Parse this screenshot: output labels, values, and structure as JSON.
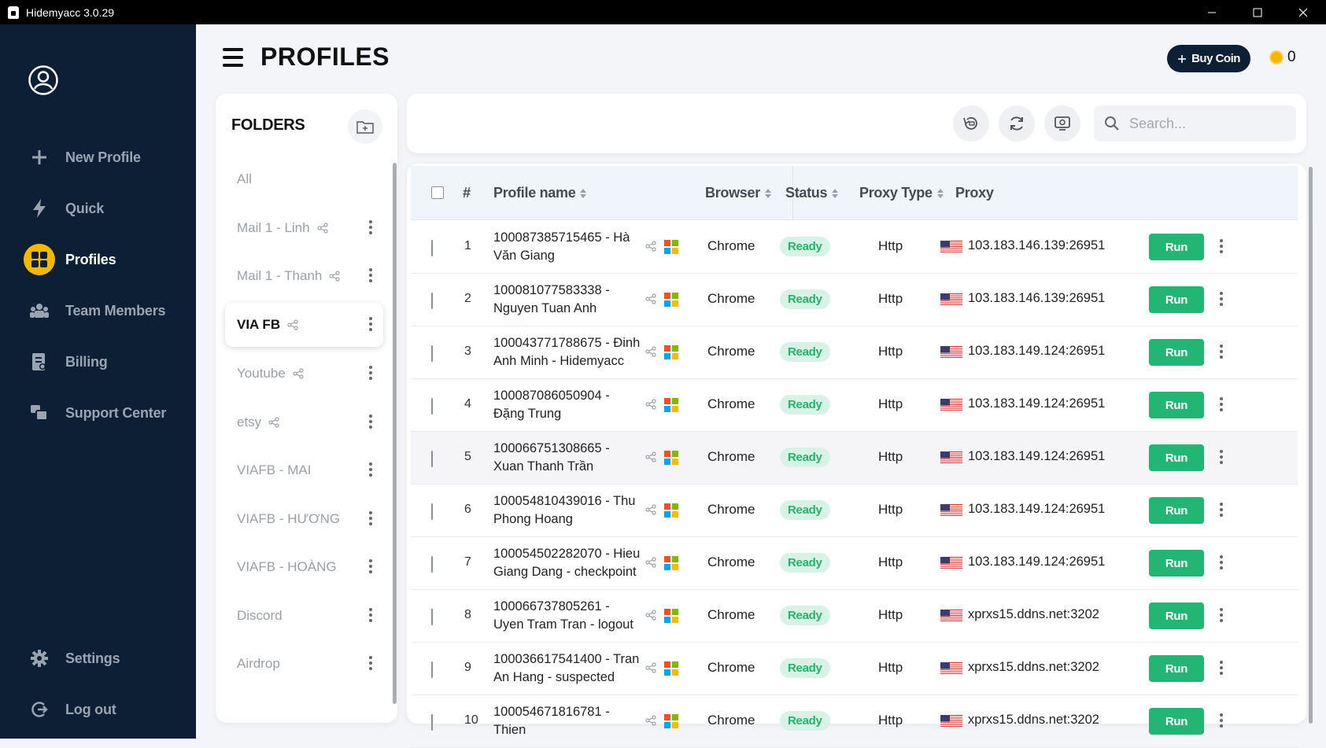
{
  "window": {
    "title": "Hidemyacc 3.0.29"
  },
  "sidebar": {
    "items": [
      {
        "label": "New Profile",
        "icon": "plus-icon"
      },
      {
        "label": "Quick",
        "icon": "lightning-icon"
      },
      {
        "label": "Profiles",
        "icon": "grid-icon",
        "active": true
      },
      {
        "label": "Team Members",
        "icon": "team-icon"
      },
      {
        "label": "Billing",
        "icon": "billing-icon"
      },
      {
        "label": "Support Center",
        "icon": "support-icon"
      }
    ],
    "bottom": [
      {
        "label": "Settings",
        "icon": "gear-icon"
      },
      {
        "label": "Log out",
        "icon": "logout-icon"
      }
    ]
  },
  "header": {
    "title": "PROFILES",
    "buy_coin": "Buy Coin",
    "coin_balance": "0"
  },
  "folders": {
    "title": "FOLDERS",
    "items": [
      {
        "label": "All",
        "shared": false,
        "menu": false
      },
      {
        "label": "Mail 1 - Linh",
        "shared": true,
        "menu": true
      },
      {
        "label": "Mail 1 - Thanh",
        "shared": true,
        "menu": true
      },
      {
        "label": "VIA FB",
        "shared": true,
        "menu": true,
        "active": true
      },
      {
        "label": "Youtube",
        "shared": true,
        "menu": true
      },
      {
        "label": "etsy",
        "shared": true,
        "menu": true
      },
      {
        "label": "VIAFB - MAI",
        "shared": false,
        "menu": true
      },
      {
        "label": "VIAFB - HƯƠNG",
        "shared": false,
        "menu": true
      },
      {
        "label": "VIAFB - HOÀNG",
        "shared": false,
        "menu": true
      },
      {
        "label": "Discord",
        "shared": false,
        "menu": true
      },
      {
        "label": "Airdrop",
        "shared": false,
        "menu": true
      }
    ]
  },
  "search": {
    "placeholder": "Search..."
  },
  "table": {
    "headers": {
      "num": "#",
      "name": "Profile name",
      "browser": "Browser",
      "status": "Status",
      "proxy_type": "Proxy Type",
      "proxy": "Proxy"
    },
    "run_label": "Run",
    "rows": [
      {
        "num": "1",
        "name": "100087385715465 - Hà Văn Giang",
        "browser": "Chrome",
        "status": "Ready",
        "proxy_type": "Http",
        "proxy": "103.183.146.139:26951"
      },
      {
        "num": "2",
        "name": "100081077583338 - Nguyen Tuan Anh",
        "browser": "Chrome",
        "status": "Ready",
        "proxy_type": "Http",
        "proxy": "103.183.146.139:26951"
      },
      {
        "num": "3",
        "name": "100043771788675 - Đinh Anh Minh - Hidemyacc",
        "browser": "Chrome",
        "status": "Ready",
        "proxy_type": "Http",
        "proxy": "103.183.149.124:26951"
      },
      {
        "num": "4",
        "name": "100087086050904 - Đặng Trung",
        "browser": "Chrome",
        "status": "Ready",
        "proxy_type": "Http",
        "proxy": "103.183.149.124:26951"
      },
      {
        "num": "5",
        "name": "100066751308665 - Xuan Thanh Trần",
        "browser": "Chrome",
        "status": "Ready",
        "proxy_type": "Http",
        "proxy": "103.183.149.124:26951"
      },
      {
        "num": "6",
        "name": "100054810439016 - Thu Phong Hoang",
        "browser": "Chrome",
        "status": "Ready",
        "proxy_type": "Http",
        "proxy": "103.183.149.124:26951"
      },
      {
        "num": "7",
        "name": "100054502282070 - Hieu Giang Dang - checkpoint",
        "browser": "Chrome",
        "status": "Ready",
        "proxy_type": "Http",
        "proxy": "103.183.149.124:26951"
      },
      {
        "num": "8",
        "name": "100066737805261 - Uyen Tram Tran - logout",
        "browser": "Chrome",
        "status": "Ready",
        "proxy_type": "Http",
        "proxy": "xprxs15.ddns.net:3202"
      },
      {
        "num": "9",
        "name": "100036617541400 - Tran An Hang - suspected",
        "browser": "Chrome",
        "status": "Ready",
        "proxy_type": "Http",
        "proxy": "xprxs15.ddns.net:3202"
      },
      {
        "num": "10",
        "name": "100054671816781 - Thien",
        "browser": "Chrome",
        "status": "Ready",
        "proxy_type": "Http",
        "proxy": "xprxs15.ddns.net:3202"
      }
    ]
  },
  "colors": {
    "sidebar_bg": "#0d1f35",
    "accent": "#f5b800",
    "run": "#22b573",
    "status_text": "#24b36b",
    "status_bg": "#d8f3e6"
  }
}
